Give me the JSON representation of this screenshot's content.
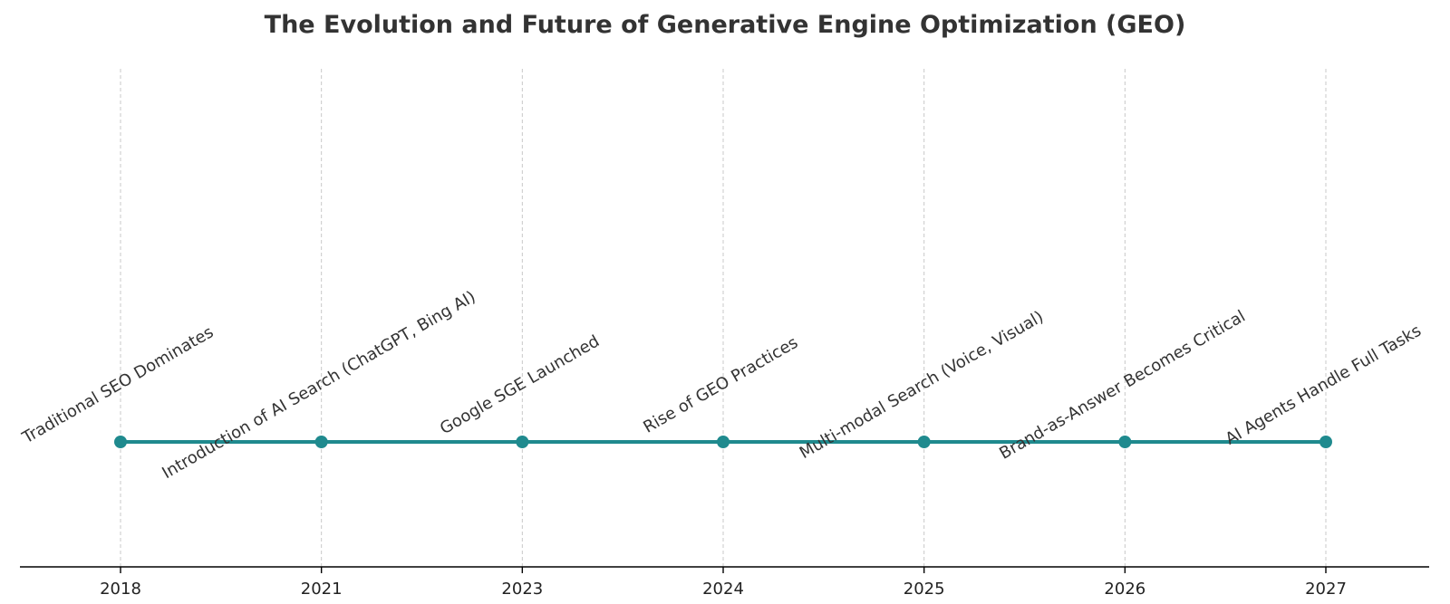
{
  "chart_data": {
    "type": "scatter",
    "title": "The Evolution and Future of Generative Engine Optimization (GEO)",
    "xlabel": "",
    "ylabel": "",
    "x_scale": "categorical",
    "categories": [
      "2018",
      "2021",
      "2023",
      "2024",
      "2025",
      "2026",
      "2027"
    ],
    "events": [
      {
        "year": "2018",
        "label": "Traditional SEO Dominates"
      },
      {
        "year": "2021",
        "label": "Introduction of AI Search (ChatGPT, Bing AI)"
      },
      {
        "year": "2023",
        "label": "Google SGE Launched"
      },
      {
        "year": "2024",
        "label": "Rise of GEO Practices"
      },
      {
        "year": "2025",
        "label": "Multi-modal Search (Voice, Visual)"
      },
      {
        "year": "2026",
        "label": "Brand-as-Answer Becomes Critical"
      },
      {
        "year": "2027",
        "label": "AI Agents Handle Full Tasks"
      }
    ],
    "connect_points": true,
    "label_rotation_deg": -30,
    "grid": {
      "x": true,
      "y": false,
      "style": "dashed"
    },
    "legend": "none",
    "colors": {
      "line": "#1f8a8e",
      "grid": "#c8c8c8",
      "axis": "#000000",
      "text": "#333333"
    }
  }
}
